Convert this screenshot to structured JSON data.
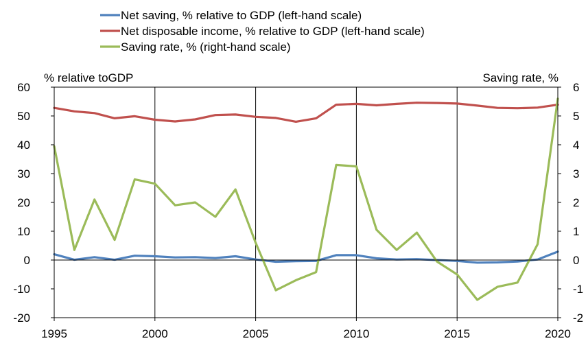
{
  "chart_data": {
    "type": "line",
    "x": [
      1995,
      1996,
      1997,
      1998,
      1999,
      2000,
      2001,
      2002,
      2003,
      2004,
      2005,
      2006,
      2007,
      2008,
      2009,
      2010,
      2011,
      2012,
      2013,
      2014,
      2015,
      2016,
      2017,
      2018,
      2019,
      2020
    ],
    "xticks": [
      "1995",
      "2000",
      "2005",
      "2010",
      "2015",
      "2020"
    ],
    "xlim": [
      1995,
      2020
    ],
    "left_axis": {
      "title": "% relative toGDP",
      "ylim": [
        -20,
        60
      ],
      "ticks": [
        "60",
        "50",
        "40",
        "30",
        "20",
        "10",
        "0",
        "-10",
        "-20"
      ]
    },
    "right_axis": {
      "title": "Saving rate, %",
      "ylim": [
        -2,
        6
      ],
      "ticks": [
        "6",
        "5",
        "4",
        "3",
        "2",
        "1",
        "0",
        "-1",
        "-2"
      ]
    },
    "grid": "vertical",
    "legend_position": "top",
    "series": [
      {
        "name": "Net saving, % relative to GDP (left-hand scale)",
        "axis": "left",
        "color": "#4f81bd",
        "values": [
          2.0,
          0.1,
          1.0,
          0.1,
          1.5,
          1.3,
          0.9,
          1.0,
          0.7,
          1.3,
          0.2,
          -0.6,
          -0.4,
          -0.3,
          1.7,
          1.7,
          0.6,
          0.2,
          0.3,
          0.0,
          -0.3,
          -0.9,
          -0.8,
          -0.5,
          0.2,
          2.9
        ]
      },
      {
        "name": "Net disposable income, % relative to GDP (left-hand scale)",
        "axis": "left",
        "color": "#c0504d",
        "values": [
          52.8,
          51.6,
          51.0,
          49.2,
          49.9,
          48.7,
          48.1,
          48.8,
          50.3,
          50.5,
          49.7,
          49.3,
          48.0,
          49.2,
          53.9,
          54.2,
          53.7,
          54.2,
          54.6,
          54.5,
          54.3,
          53.6,
          52.8,
          52.7,
          52.9,
          53.9
        ]
      },
      {
        "name": "Saving rate, % (right-hand scale)",
        "axis": "right",
        "color": "#9bbb59",
        "values": [
          3.95,
          0.35,
          2.1,
          0.7,
          2.8,
          2.65,
          1.9,
          2.0,
          1.5,
          2.45,
          0.6,
          -1.05,
          -0.7,
          -0.42,
          3.3,
          3.25,
          1.05,
          0.35,
          0.95,
          -0.05,
          -0.5,
          -1.38,
          -0.93,
          -0.78,
          0.55,
          5.6
        ]
      }
    ]
  }
}
